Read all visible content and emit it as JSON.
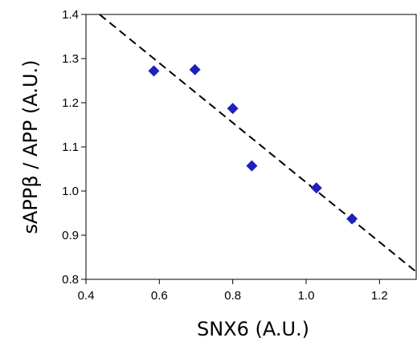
{
  "chart_data": {
    "type": "scatter",
    "xlabel": "SNX6  (A.U.)",
    "ylabel": "sAPPβ / APP  (A.U.)",
    "xlim": [
      0.4,
      1.3
    ],
    "ylim": [
      0.8,
      1.4
    ],
    "x_ticks": [
      "0.4",
      "0.6",
      "0.8",
      "1.0",
      "1.2"
    ],
    "y_ticks": [
      "0.8",
      "0.9",
      "1.0",
      "1.1",
      "1.2",
      "1.3",
      "1.4"
    ],
    "x_tick_values": [
      0.4,
      0.6,
      0.8,
      1.0,
      1.2
    ],
    "y_tick_values": [
      0.8,
      0.9,
      1.0,
      1.1,
      1.2,
      1.3,
      1.4
    ],
    "grid": false,
    "legend": "none",
    "marker": "diamond",
    "marker_color": "#1f1fbf",
    "points": [
      {
        "x": 0.585,
        "y": 1.272
      },
      {
        "x": 0.697,
        "y": 1.275
      },
      {
        "x": 0.8,
        "y": 1.187
      },
      {
        "x": 0.852,
        "y": 1.057
      },
      {
        "x": 1.028,
        "y": 1.007
      },
      {
        "x": 1.125,
        "y": 0.937
      }
    ],
    "trendline": {
      "style": "dashed",
      "color": "#000000",
      "x_start": 0.437,
      "y_start": 1.4,
      "x_end": 1.3,
      "y_end": 0.817
    }
  }
}
